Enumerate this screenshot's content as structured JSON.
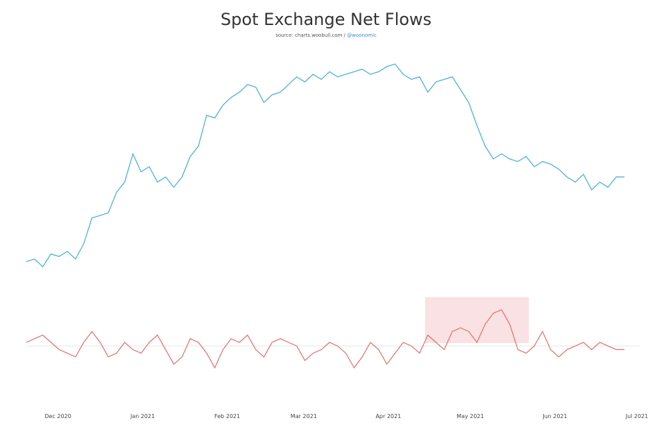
{
  "title": "Spot Exchange Net Flows",
  "subtitle": {
    "prefix": "source: charts.woobull.com / ",
    "handle": "@woonomic"
  },
  "chart_data": {
    "type": "line",
    "title": "Spot Exchange Net Flows",
    "x_tick_labels": [
      "Dec 2020",
      "Jan 2021",
      "Feb 2021",
      "Mar 2021",
      "Apr 2021",
      "May 2021",
      "Jun 2021",
      "Jul 2021"
    ],
    "grid": false,
    "legend": "none",
    "highlight": {
      "x_start": "2021-04-19",
      "x_end": "2021-05-27",
      "color": "#f8d7d9"
    },
    "series": [
      {
        "color": "#4cb3d9",
        "x": [
          "2020-11-24",
          "2020-11-27",
          "2020-11-30",
          "2020-12-03",
          "2020-12-06",
          "2020-12-09",
          "2020-12-12",
          "2020-12-15",
          "2020-12-18",
          "2020-12-21",
          "2020-12-24",
          "2020-12-27",
          "2020-12-30",
          "2021-01-02",
          "2021-01-05",
          "2021-01-08",
          "2021-01-11",
          "2021-01-14",
          "2021-01-17",
          "2021-01-20",
          "2021-01-23",
          "2021-01-26",
          "2021-01-29",
          "2021-02-01",
          "2021-02-04",
          "2021-02-07",
          "2021-02-10",
          "2021-02-13",
          "2021-02-16",
          "2021-02-19",
          "2021-02-22",
          "2021-02-25",
          "2021-02-28",
          "2021-03-03",
          "2021-03-06",
          "2021-03-09",
          "2021-03-12",
          "2021-03-15",
          "2021-03-18",
          "2021-03-21",
          "2021-03-24",
          "2021-03-27",
          "2021-03-30",
          "2021-04-02",
          "2021-04-05",
          "2021-04-08",
          "2021-04-11",
          "2021-04-14",
          "2021-04-17",
          "2021-04-20",
          "2021-04-23",
          "2021-04-26",
          "2021-04-29",
          "2021-05-02",
          "2021-05-05",
          "2021-05-08",
          "2021-05-11",
          "2021-05-14",
          "2021-05-17",
          "2021-05-20",
          "2021-05-23",
          "2021-05-26",
          "2021-05-29",
          "2021-06-01",
          "2021-06-04",
          "2021-06-07",
          "2021-06-10",
          "2021-06-13",
          "2021-06-16",
          "2021-06-19",
          "2021-06-22",
          "2021-06-25",
          "2021-06-28",
          "2021-07-01"
        ],
        "y": [
          5,
          10,
          -5,
          20,
          15,
          25,
          10,
          40,
          90,
          95,
          100,
          140,
          160,
          215,
          180,
          190,
          160,
          170,
          150,
          170,
          210,
          230,
          290,
          285,
          310,
          325,
          335,
          350,
          345,
          315,
          330,
          335,
          350,
          365,
          355,
          370,
          360,
          375,
          365,
          370,
          375,
          380,
          370,
          375,
          385,
          390,
          370,
          360,
          365,
          335,
          355,
          360,
          365,
          340,
          315,
          270,
          230,
          205,
          215,
          205,
          200,
          210,
          190,
          200,
          195,
          185,
          170,
          160,
          175,
          145,
          160,
          150,
          170,
          170
        ],
        "ylim": [
          -40,
          420
        ]
      },
      {
        "color": "#e36d6d",
        "x": [
          "2020-11-24",
          "2020-11-27",
          "2020-11-30",
          "2020-12-03",
          "2020-12-06",
          "2020-12-09",
          "2020-12-12",
          "2020-12-15",
          "2020-12-18",
          "2020-12-21",
          "2020-12-24",
          "2020-12-27",
          "2020-12-30",
          "2021-01-02",
          "2021-01-05",
          "2021-01-08",
          "2021-01-11",
          "2021-01-14",
          "2021-01-17",
          "2021-01-20",
          "2021-01-23",
          "2021-01-26",
          "2021-01-29",
          "2021-02-01",
          "2021-02-04",
          "2021-02-07",
          "2021-02-10",
          "2021-02-13",
          "2021-02-16",
          "2021-02-19",
          "2021-02-22",
          "2021-02-25",
          "2021-02-28",
          "2021-03-03",
          "2021-03-06",
          "2021-03-09",
          "2021-03-12",
          "2021-03-15",
          "2021-03-18",
          "2021-03-21",
          "2021-03-24",
          "2021-03-27",
          "2021-03-30",
          "2021-04-02",
          "2021-04-05",
          "2021-04-08",
          "2021-04-11",
          "2021-04-14",
          "2021-04-17",
          "2021-04-20",
          "2021-04-23",
          "2021-04-26",
          "2021-04-29",
          "2021-05-02",
          "2021-05-05",
          "2021-05-08",
          "2021-05-11",
          "2021-05-14",
          "2021-05-17",
          "2021-05-20",
          "2021-05-23",
          "2021-05-26",
          "2021-05-29",
          "2021-06-01",
          "2021-06-04",
          "2021-06-07",
          "2021-06-10",
          "2021-06-13",
          "2021-06-16",
          "2021-06-19",
          "2021-06-22",
          "2021-06-25",
          "2021-06-28",
          "2021-07-01"
        ],
        "y": [
          5,
          10,
          15,
          5,
          -5,
          -10,
          -15,
          5,
          20,
          5,
          -15,
          -10,
          5,
          -5,
          -10,
          5,
          15,
          -5,
          -25,
          -15,
          10,
          5,
          -10,
          -30,
          -5,
          10,
          5,
          15,
          -5,
          -15,
          5,
          10,
          5,
          0,
          -20,
          -10,
          -5,
          5,
          0,
          -10,
          -30,
          -15,
          5,
          -5,
          -25,
          -10,
          5,
          0,
          -10,
          15,
          5,
          -5,
          20,
          25,
          20,
          5,
          30,
          45,
          50,
          30,
          -5,
          -10,
          0,
          20,
          -5,
          -15,
          -5,
          0,
          5,
          -5,
          5,
          0,
          -5,
          -5
        ],
        "ylim": [
          -40,
          70
        ]
      }
    ]
  }
}
